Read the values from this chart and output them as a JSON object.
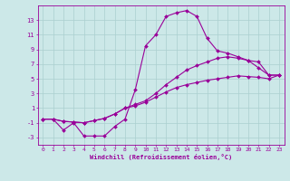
{
  "xlabel": "Windchill (Refroidissement éolien,°C)",
  "background_color": "#cce8e8",
  "grid_color": "#aacfcf",
  "line_color": "#990099",
  "x_min": 0,
  "x_max": 23,
  "y_min": -4,
  "y_max": 15,
  "yticks": [
    -3,
    -1,
    1,
    3,
    5,
    7,
    9,
    11,
    13
  ],
  "xticks": [
    0,
    1,
    2,
    3,
    4,
    5,
    6,
    7,
    8,
    9,
    10,
    11,
    12,
    13,
    14,
    15,
    16,
    17,
    18,
    19,
    20,
    21,
    22,
    23
  ],
  "line1_x": [
    0,
    1,
    2,
    3,
    4,
    5,
    6,
    7,
    8,
    9,
    10,
    11,
    12,
    13,
    14,
    15,
    16,
    17,
    18,
    19,
    20,
    21,
    22,
    23
  ],
  "line1_y": [
    -0.5,
    -0.5,
    -2.0,
    -1.0,
    -2.8,
    -2.8,
    -2.8,
    -1.5,
    -0.5,
    3.5,
    9.5,
    11.0,
    13.5,
    14.0,
    14.3,
    13.5,
    10.5,
    8.8,
    8.5,
    8.0,
    7.5,
    6.5,
    5.5,
    5.5
  ],
  "line2_x": [
    0,
    1,
    2,
    3,
    4,
    5,
    6,
    7,
    8,
    9,
    10,
    11,
    12,
    13,
    14,
    15,
    16,
    17,
    18,
    19,
    20,
    21,
    22,
    23
  ],
  "line2_y": [
    -0.5,
    -0.5,
    -0.8,
    -0.9,
    -1.0,
    -0.7,
    -0.4,
    0.2,
    1.0,
    1.5,
    2.0,
    3.0,
    4.2,
    5.2,
    6.2,
    6.8,
    7.3,
    7.8,
    8.0,
    7.8,
    7.5,
    7.3,
    5.5,
    5.5
  ],
  "line3_x": [
    0,
    1,
    2,
    3,
    4,
    5,
    6,
    7,
    8,
    9,
    10,
    11,
    12,
    13,
    14,
    15,
    16,
    17,
    18,
    19,
    20,
    21,
    22,
    23
  ],
  "line3_y": [
    -0.5,
    -0.5,
    -0.8,
    -0.9,
    -1.0,
    -0.7,
    -0.4,
    0.2,
    1.0,
    1.3,
    1.8,
    2.5,
    3.2,
    3.8,
    4.2,
    4.5,
    4.8,
    5.0,
    5.2,
    5.4,
    5.3,
    5.2,
    5.0,
    5.5
  ]
}
